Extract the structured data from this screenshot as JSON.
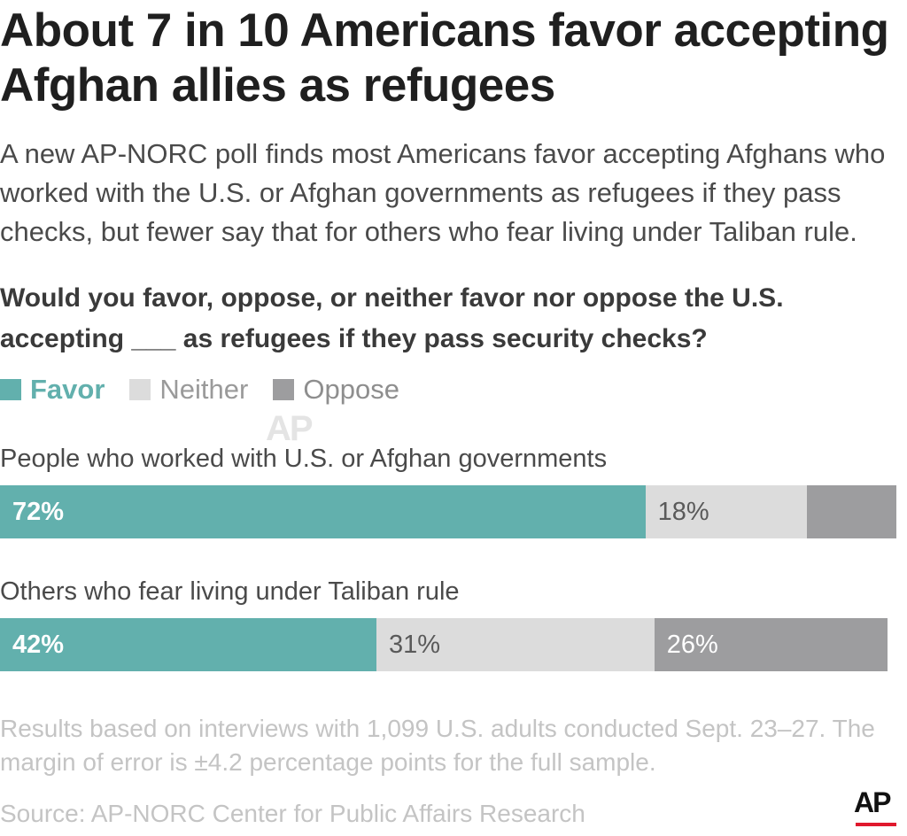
{
  "header": {
    "title": "About 7 in 10 Americans favor accepting Afghan allies as refugees",
    "subtitle": "A new AP-NORC poll finds most Americans favor accepting Afghans who worked with the U.S. or Afghan governments as refugees if they pass checks, but fewer say that for others who fear living under Taliban rule.",
    "question": "Would you favor, oppose, or neither favor nor oppose the U.S. accepting ___ as refugees if they pass security checks?"
  },
  "watermark": "AP",
  "chart_data": {
    "type": "bar",
    "orientation": "horizontal-stacked-100",
    "categories": [
      "People who worked with U.S. or Afghan governments",
      "Others who fear living under Taliban rule"
    ],
    "series": [
      {
        "name": "Favor",
        "color": "#62b0ad",
        "values": [
          72,
          42
        ],
        "labels": [
          "72%",
          "42%"
        ]
      },
      {
        "name": "Neither",
        "color": "#dcdcdc",
        "values": [
          18,
          31
        ],
        "labels": [
          "18%",
          "31%"
        ]
      },
      {
        "name": "Oppose",
        "color": "#9d9d9f",
        "values": [
          10,
          26
        ],
        "labels": [
          "",
          "26%"
        ]
      }
    ],
    "legend_position": "top-left",
    "xlim": [
      0,
      100
    ]
  },
  "footer": {
    "note": "Results based on interviews with 1,099 U.S. adults conducted Sept. 23–27. The margin of error is ±4.2 percentage points for the full sample.",
    "source": "Source:  AP-NORC Center for Public Affairs Research",
    "logo": "AP"
  }
}
